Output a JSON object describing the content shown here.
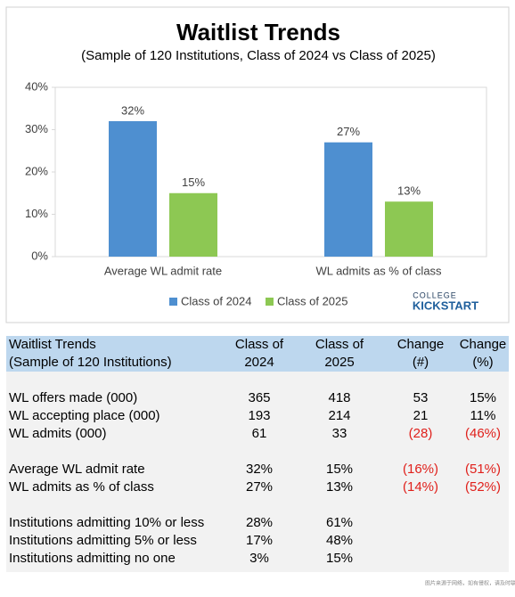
{
  "chart_data": {
    "type": "bar",
    "title": "Waitlist Trends",
    "subtitle": "(Sample of 120 Institutions, Class of 2024 vs Class of 2025)",
    "categories": [
      "Average WL admit rate",
      "WL admits as % of class"
    ],
    "series": [
      {
        "name": "Class of 2024",
        "color": "#4e8fd0",
        "values": [
          32,
          27
        ],
        "value_labels": [
          "32%",
          "27%"
        ]
      },
      {
        "name": "Class of 2025",
        "color": "#8dc853",
        "values": [
          15,
          13
        ],
        "value_labels": [
          "15%",
          "13%"
        ]
      }
    ],
    "ylim": [
      0,
      40
    ],
    "yticks": [
      {
        "value": 0,
        "label": "0%"
      },
      {
        "value": 10,
        "label": "10%"
      },
      {
        "value": 20,
        "label": "20%"
      },
      {
        "value": 30,
        "label": "30%"
      },
      {
        "value": 40,
        "label": "40%"
      }
    ],
    "grid": false,
    "legend": "bottom"
  },
  "logo": {
    "top": "COLLEGE",
    "bottom": "KICKSTART"
  },
  "table": {
    "header": [
      [
        "Waitlist Trends",
        "(Sample of 120 Institutions)"
      ],
      [
        "Class of",
        "2024"
      ],
      [
        "Class of",
        "2025"
      ],
      [
        "Change",
        "(#)"
      ],
      [
        "Change",
        "(%)"
      ]
    ],
    "groups": [
      [
        [
          "WL offers made (000)",
          "365",
          "418",
          "53",
          "15%"
        ],
        [
          "WL accepting place (000)",
          "193",
          "214",
          "21",
          "11%"
        ],
        [
          "WL admits (000)",
          "61",
          "33",
          "(28)",
          "(46%)"
        ]
      ],
      [
        [
          "Average WL admit rate",
          "32%",
          "15%",
          "(16%)",
          "(51%)"
        ],
        [
          "WL admits as % of class",
          "27%",
          "13%",
          "(14%)",
          "(52%)"
        ]
      ],
      [
        [
          "Institutions admitting 10% or less",
          "28%",
          "61%"
        ],
        [
          "Institutions admitting 5% or less",
          "17%",
          "48%"
        ],
        [
          "Institutions admitting no one",
          "3%",
          "15%"
        ]
      ]
    ],
    "negative_color": "#e0201b"
  },
  "watermark": "图片来源于网络，如有侵权，请及时联系删除。"
}
